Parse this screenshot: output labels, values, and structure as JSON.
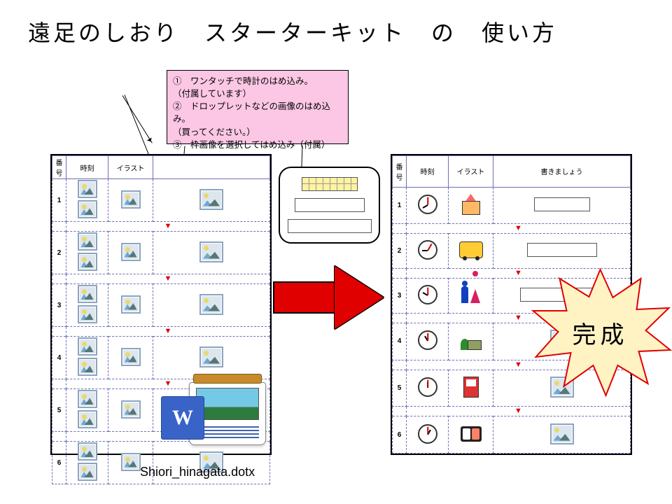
{
  "title": "遠足のしおり　スターターキット　の　使い方",
  "callout": {
    "bg": "#fbc7e4",
    "l1": "①　ワンタッチで時計のはめ込み。",
    "l1b": "（付属しています）",
    "l2": "②　ドロップレットなどの画像のはめ込み。",
    "l2b": "（買ってください。）",
    "l3": "③　枠画像を選択してはめ込み（付属）"
  },
  "leftPage": {
    "headers": [
      "番号",
      "時刻",
      "イラスト",
      ""
    ],
    "rows": [
      "1",
      "2",
      "3",
      "4",
      "5",
      "6"
    ]
  },
  "rightPage": {
    "headers": [
      "番号",
      "時刻",
      "イラスト",
      "書きましょう"
    ],
    "rows": [
      {
        "n": "1",
        "clock": "h8",
        "icon": "school",
        "grid": "yfill gt",
        "grid2": "ygrid g1"
      },
      {
        "n": "2",
        "clock": "h9",
        "icon": "bus",
        "grid": "ygrid g2"
      },
      {
        "n": "3",
        "clock": "h10",
        "icon": "toilet",
        "grid": "ygrid g3"
      },
      {
        "n": "4",
        "clock": "h11",
        "icon": "park",
        "grid": "ph"
      },
      {
        "n": "5",
        "clock": "h12",
        "icon": "vend",
        "grid": "ph"
      },
      {
        "n": "6",
        "clock": "h1",
        "icon": "bento",
        "grid": "ph"
      }
    ]
  },
  "burst": {
    "label": "完成",
    "fill": "#FFF3C4",
    "stroke": "#E00000"
  },
  "filename": "Shiori_hinagata.dotx",
  "arrow_color": "#E00000"
}
